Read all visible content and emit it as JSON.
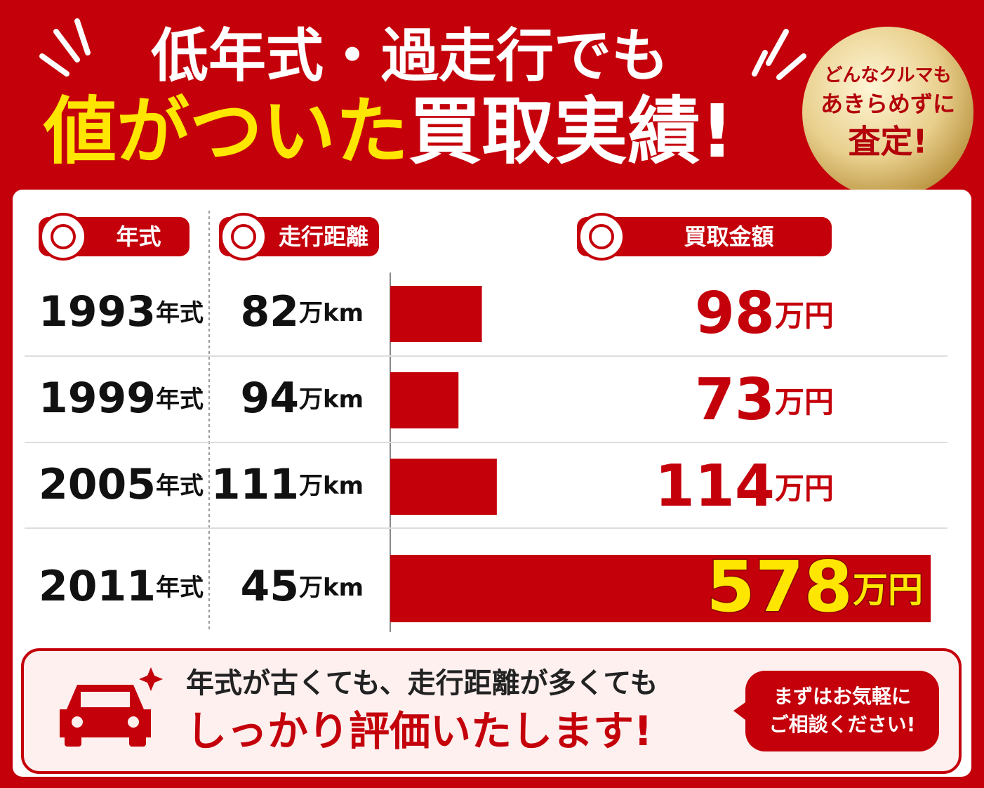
{
  "header": {
    "title_line1": "低年式・過走行でも",
    "title_highlight": "値がついた",
    "title_rest": "買取実績!"
  },
  "badge": {
    "line1": "どんなクルマも",
    "line2": "あきらめずに",
    "line3": "査定!"
  },
  "chart_data": {
    "type": "bar",
    "columns": [
      "年式",
      "走行距離",
      "買取金額"
    ],
    "categories": [
      "1993",
      "1999",
      "2005",
      "2011"
    ],
    "category_unit": "年式",
    "mileage": [
      82,
      94,
      111,
      45
    ],
    "mileage_unit": "万km",
    "values": [
      98,
      73,
      114,
      578
    ],
    "value_unit": "万円",
    "color": "#c4000b"
  },
  "footer": {
    "message_line1": "年式が古くても、走行距離が多くても",
    "message_line2": "しっかり評価いたします!",
    "bubble_line1": "まずはお気軽に",
    "bubble_line2": "ご相談ください!"
  }
}
